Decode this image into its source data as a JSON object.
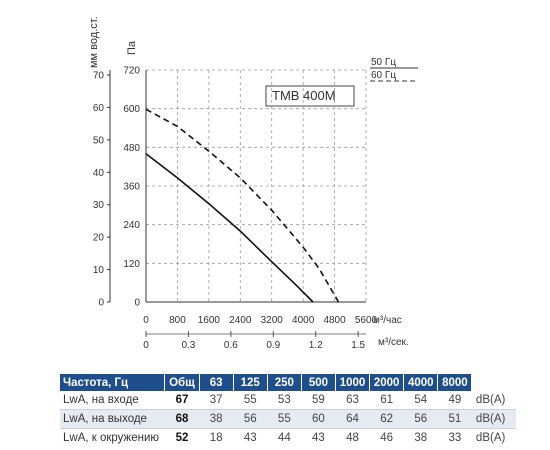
{
  "chart_data": {
    "type": "line",
    "model_label": "ТМВ 400М",
    "y_left_unit": "мм вод.ст.",
    "y_left_ticks": [
      "0",
      "10",
      "20",
      "30",
      "40",
      "50",
      "60",
      "70"
    ],
    "y_pa_unit": "Па",
    "y_pa_ticks": [
      "0",
      "120",
      "240",
      "360",
      "480",
      "600",
      "720"
    ],
    "x_top_unit": "м³/час",
    "x_top_ticks": [
      "0",
      "800",
      "1600",
      "2400",
      "3200",
      "4000",
      "4800",
      "5600"
    ],
    "x_bottom_unit": "м³/сек.",
    "x_bottom_ticks": [
      "0",
      "0.3",
      "0.6",
      "0.9",
      "1.2",
      "1.5"
    ],
    "xlim": [
      0,
      5600
    ],
    "ylim": [
      0,
      720
    ],
    "legend": [
      {
        "label": "50 Гц",
        "style": "solid"
      },
      {
        "label": "60 Гц",
        "style": "dashed"
      }
    ],
    "series": [
      {
        "name": "50 Гц",
        "style": "solid",
        "x": [
          0,
          800,
          1600,
          2400,
          3200,
          3800,
          4250
        ],
        "y": [
          460,
          385,
          305,
          220,
          125,
          55,
          0
        ]
      },
      {
        "name": "60 Гц",
        "style": "dashed",
        "x": [
          0,
          800,
          1600,
          2400,
          3200,
          4000,
          4400,
          4900
        ],
        "y": [
          598,
          545,
          468,
          385,
          285,
          170,
          105,
          0
        ]
      }
    ]
  },
  "table": {
    "headers": [
      "Частота, Гц",
      "Общ",
      "63",
      "125",
      "250",
      "500",
      "1000",
      "2000",
      "4000",
      "8000",
      ""
    ],
    "rows": [
      {
        "name": "LwA, на входе",
        "total": "67",
        "values": [
          "37",
          "55",
          "53",
          "59",
          "63",
          "61",
          "54",
          "49"
        ],
        "unit": "dB(A)"
      },
      {
        "name": "LwA, на выходе",
        "total": "68",
        "values": [
          "38",
          "56",
          "55",
          "60",
          "64",
          "62",
          "56",
          "51"
        ],
        "unit": "dB(A)"
      },
      {
        "name": "LwA, к окружению",
        "total": "52",
        "values": [
          "18",
          "43",
          "44",
          "43",
          "48",
          "46",
          "38",
          "33"
        ],
        "unit": "dB(A)"
      }
    ]
  }
}
